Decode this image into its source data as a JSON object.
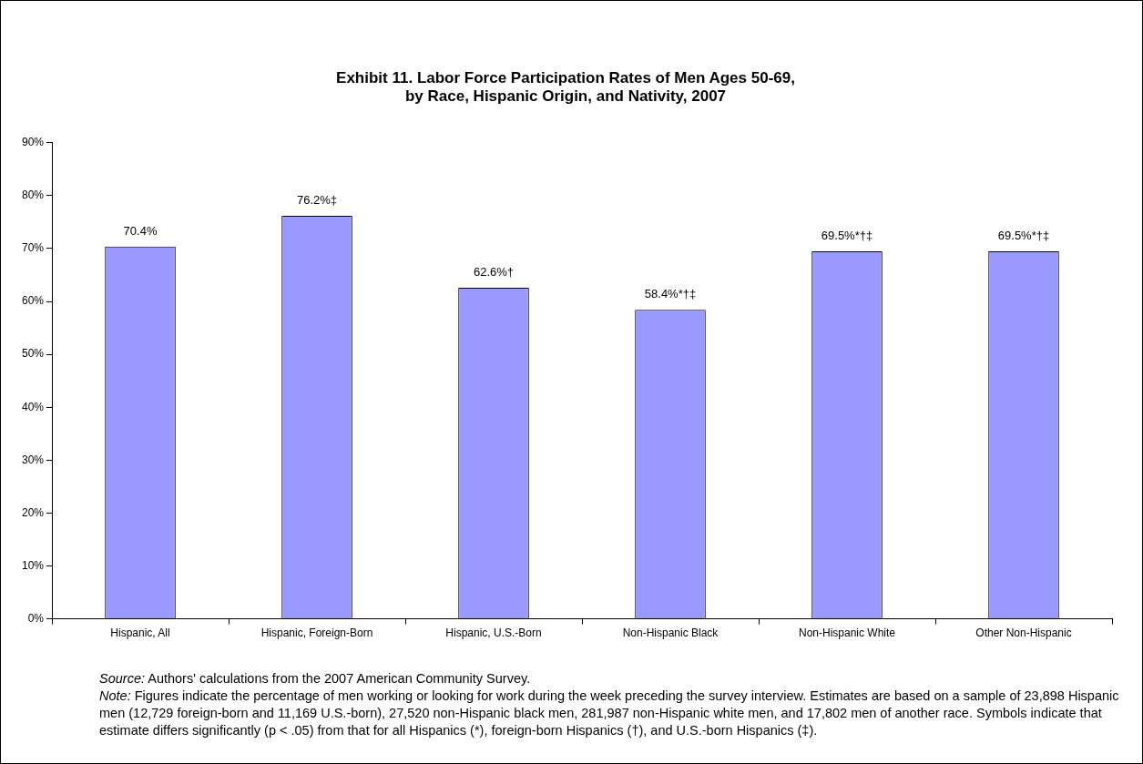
{
  "chart_data": {
    "type": "bar",
    "title": "Exhibit 11. Labor Force Participation Rates of Men Ages 50-69,\nby Race, Hispanic Origin, and Nativity, 2007",
    "categories": [
      "Hispanic, All",
      "Hispanic, Foreign-Born",
      "Hispanic, U.S.-Born",
      "Non-Hispanic Black",
      "Non-Hispanic White",
      "Other Non-Hispanic"
    ],
    "values": [
      70.4,
      76.2,
      62.6,
      58.4,
      69.5,
      69.5
    ],
    "value_labels": [
      "70.4%",
      "76.2%‡",
      "62.6%†",
      "58.4%*†‡",
      "69.5%*†‡",
      "69.5%*†‡"
    ],
    "color": "#9999ff",
    "ylim": [
      0,
      90
    ],
    "yticks": [
      {
        "value": 0,
        "label": "0%"
      },
      {
        "value": 10,
        "label": "10%"
      },
      {
        "value": 20,
        "label": "20%"
      },
      {
        "value": 30,
        "label": "30%"
      },
      {
        "value": 40,
        "label": "40%"
      },
      {
        "value": 50,
        "label": "50%"
      },
      {
        "value": 60,
        "label": "60%"
      },
      {
        "value": 70,
        "label": "70%"
      },
      {
        "value": 80,
        "label": "80%"
      },
      {
        "value": 90,
        "label": "90%"
      }
    ],
    "grid": false,
    "legend": false,
    "annotations": [
      "Source: Authors' calculations from the 2007 American Community Survey.",
      "Note: Figures indicate the percentage of men working or looking for work during the week preceding the survey interview.  Estimates are based on a sample of 23,898 Hispanic men (12,729 foreign-born and 11,169 U.S.-born), 27,520 non-Hispanic black men, 281,987 non-Hispanic white men, and 17,802 men of another race. Symbols indicate that estimate differs significantly (p < .05) from that for all Hispanics (*), foreign-born Hispanics (†), and U.S.-born Hispanics (‡)."
    ]
  }
}
